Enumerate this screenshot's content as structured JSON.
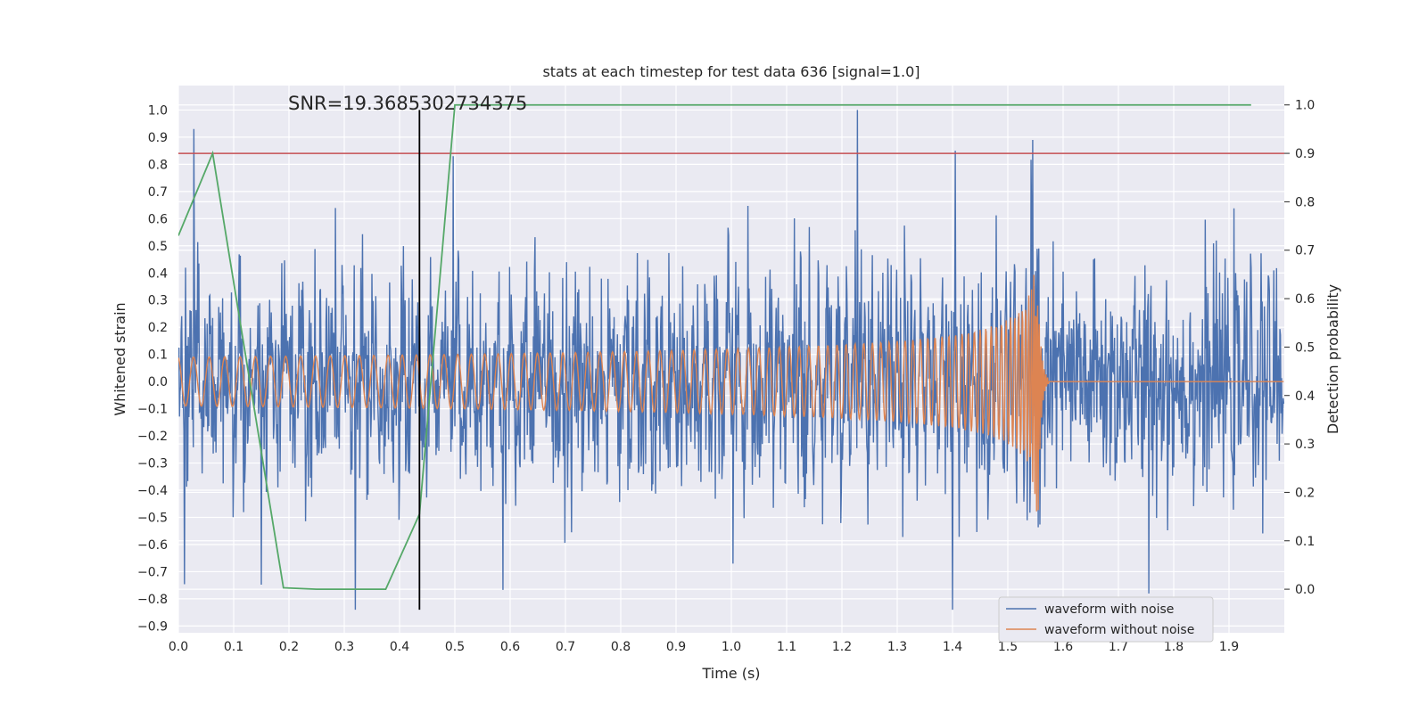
{
  "chart_data": {
    "type": "line",
    "title": "stats at each timestep for test data 636 [signal=1.0]",
    "xlabel": "Time (s)",
    "ylabel": "Whitened strain",
    "y2label": "Detection probability",
    "xlim": [
      0.0,
      2.0
    ],
    "ylim": [
      -0.925,
      1.09
    ],
    "y2lim": [
      -0.09,
      1.04
    ],
    "x_ticks": [
      "0.0",
      "0.1",
      "0.2",
      "0.3",
      "0.4",
      "0.5",
      "0.6",
      "0.7",
      "0.8",
      "0.9",
      "1.0",
      "1.1",
      "1.2",
      "1.3",
      "1.4",
      "1.5",
      "1.6",
      "1.7",
      "1.8",
      "1.9"
    ],
    "y_ticks": [
      "-0.9",
      "-0.8",
      "-0.7",
      "-0.6",
      "-0.5",
      "-0.4",
      "-0.3",
      "-0.2",
      "-0.1",
      "0.0",
      "0.1",
      "0.2",
      "0.3",
      "0.4",
      "0.5",
      "0.6",
      "0.7",
      "0.8",
      "0.9",
      "1.0"
    ],
    "y2_ticks": [
      "0.0",
      "0.1",
      "0.2",
      "0.3",
      "0.4",
      "0.5",
      "0.6",
      "0.7",
      "0.8",
      "0.9",
      "1.0"
    ],
    "annotation": "SNR=19.3685302734375",
    "threshold": {
      "y2": 0.9,
      "color": "#c44e52"
    },
    "vline": {
      "x": 0.436,
      "ymin": -0.84,
      "ymax": 1.0,
      "color": "#000000"
    },
    "legend": {
      "position": "bottom-right"
    },
    "series": [
      {
        "name": "waveform with noise",
        "color": "#4c72b0",
        "axis": "left",
        "description": "whitened noisy strain, approx. 2000 samples",
        "x_range": [
          0.0,
          2.0
        ],
        "amplitude_typical": 0.45,
        "peaks": [
          [
            0.028,
            0.93
          ],
          [
            1.228,
            1.0
          ],
          [
            1.405,
            0.85
          ],
          [
            1.545,
            0.89
          ],
          [
            0.497,
            0.83
          ],
          [
            1.4,
            -0.84
          ],
          [
            0.32,
            -0.84
          ],
          [
            1.755,
            -0.78
          ]
        ]
      },
      {
        "name": "waveform without noise",
        "color": "#dd8452",
        "axis": "left",
        "description": "chirp signal, oscillating with growing amplitude, merger near 1.555 s then zero",
        "x_range": [
          0.0,
          2.0
        ],
        "start_amplitude": 0.09,
        "merger_time": 1.555,
        "max_amplitude": [
          0.47,
          -0.7
        ]
      },
      {
        "name": "",
        "color": "#55a868",
        "axis": "right",
        "x": [
          0.0,
          0.062,
          0.19,
          0.25,
          0.375,
          0.436,
          0.5,
          1.94
        ],
        "y": [
          0.73,
          0.9,
          0.003,
          0.0,
          0.0,
          0.155,
          1.0,
          1.0
        ]
      }
    ]
  }
}
